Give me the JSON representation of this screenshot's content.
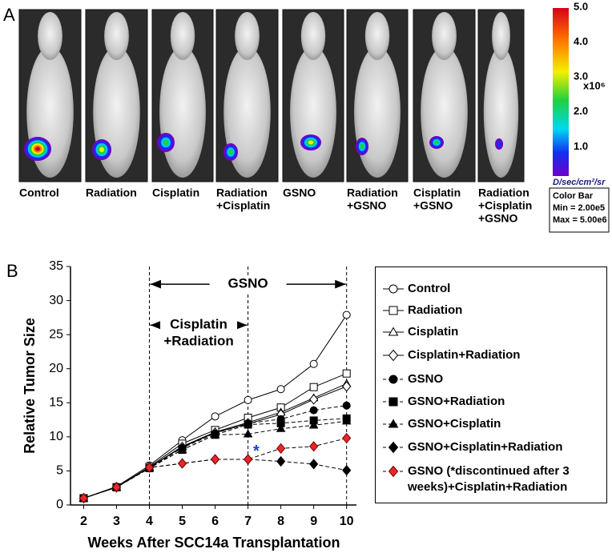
{
  "imaging": {
    "panel_label": "A",
    "labels": [
      [
        "Control"
      ],
      [
        "Radiation"
      ],
      [
        "Cisplatin"
      ],
      [
        "Radiation",
        "+Cisplatin"
      ],
      [
        "GSNO"
      ],
      [
        "Radiation",
        "+GSNO"
      ],
      [
        "Cisplatin",
        "+GSNO"
      ],
      [
        "Radiation",
        "+Cisplatin",
        "+GSNO"
      ]
    ],
    "colorbar": {
      "ticks": [
        {
          "value": 5,
          "label": "5.0"
        },
        {
          "value": 4,
          "label": "4.0"
        },
        {
          "value": 3,
          "label": "3.0"
        },
        {
          "value": 2,
          "label": "2.0"
        },
        {
          "value": 1,
          "label": "1.0"
        }
      ],
      "unit": "x10⁶",
      "units_label": "D/sec/cm²/sr",
      "box": [
        "Color Bar",
        "Min = 2.00e5",
        "Max = 5.00e6"
      ]
    }
  },
  "chart_data": {
    "type": "line",
    "panel_label": "B",
    "x_label": "Weeks After SCC14a Transplantation",
    "y_label": "Relative Tumor Size",
    "x": [
      2,
      3,
      4,
      5,
      6,
      7,
      8,
      9,
      10
    ],
    "xlim": [
      1.6,
      10.3
    ],
    "xticks": [
      2,
      3,
      4,
      5,
      6,
      7,
      8,
      9,
      10
    ],
    "ylim": [
      0,
      35
    ],
    "yticks": [
      0,
      5,
      10,
      15,
      20,
      25,
      30,
      35
    ],
    "vlines": [
      4,
      7,
      10
    ],
    "ranges": [
      {
        "lines": [
          "GSNO"
        ],
        "from": 4,
        "to": 10,
        "y": 32.4
      },
      {
        "lines": [
          "Cisplatin",
          "+Radiation"
        ],
        "from": 4,
        "to": 7,
        "y": 26.4
      }
    ],
    "annotations": [
      {
        "text": "*",
        "x": 7.25,
        "y": 7.8,
        "color": "#1f3fd0"
      }
    ],
    "series": [
      {
        "name": "Control",
        "marker": "circle",
        "filled": false,
        "dashed": false,
        "color": "#000000",
        "values": [
          1,
          2.7,
          5.8,
          9.5,
          13.0,
          15.4,
          17.0,
          20.7,
          27.9
        ]
      },
      {
        "name": "Radiation",
        "marker": "square",
        "filled": false,
        "dashed": false,
        "color": "#000000",
        "values": [
          1,
          2.6,
          5.6,
          9.0,
          11.0,
          12.8,
          14.3,
          17.3,
          19.3
        ]
      },
      {
        "name": "Cisplatin",
        "marker": "triangle",
        "filled": false,
        "dashed": false,
        "color": "#000000",
        "values": [
          1,
          2.6,
          5.5,
          8.6,
          10.7,
          12.1,
          13.6,
          15.7,
          17.8
        ]
      },
      {
        "name": "Cisplatin+Radiation",
        "marker": "diamond",
        "filled": false,
        "dashed": false,
        "color": "#000000",
        "values": [
          1,
          2.6,
          5.5,
          8.5,
          10.6,
          11.9,
          13.3,
          15.5,
          17.4
        ]
      },
      {
        "name": "GSNO",
        "marker": "circle",
        "filled": true,
        "dashed": true,
        "color": "#000000",
        "values": [
          1,
          2.6,
          5.4,
          8.4,
          10.5,
          12.0,
          12.6,
          13.9,
          14.6
        ]
      },
      {
        "name": "GSNO+Radiation",
        "marker": "square",
        "filled": true,
        "dashed": true,
        "color": "#000000",
        "values": [
          1,
          2.6,
          5.4,
          8.1,
          10.3,
          11.8,
          12.0,
          12.4,
          12.7
        ]
      },
      {
        "name": "GSNO+Cisplatin",
        "marker": "triangle",
        "filled": true,
        "dashed": true,
        "color": "#000000",
        "values": [
          1,
          2.6,
          5.4,
          8.1,
          10.3,
          10.4,
          11.2,
          11.7,
          12.3
        ]
      },
      {
        "name": "GSNO+Cisplatin+Radiation",
        "marker": "diamond",
        "filled": true,
        "dashed": true,
        "color": "#000000",
        "values": [
          1,
          2.6,
          5.5,
          6.1,
          6.7,
          6.7,
          6.4,
          6.0,
          5.1
        ]
      },
      {
        "name": "GSNO (*discontinued after 3 weeks)+Cisplatin+Radiation",
        "marker": "diamond",
        "filled": true,
        "dashed": true,
        "color": "#e8262b",
        "values": [
          1,
          2.6,
          5.5,
          6.1,
          6.7,
          6.7,
          8.3,
          8.6,
          9.8
        ]
      }
    ]
  }
}
